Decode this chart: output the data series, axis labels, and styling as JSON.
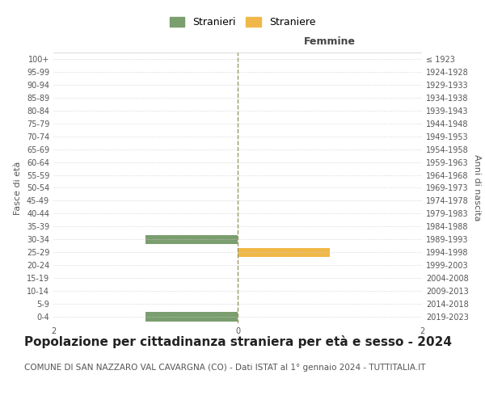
{
  "age_groups": [
    "100+",
    "95-99",
    "90-94",
    "85-89",
    "80-84",
    "75-79",
    "70-74",
    "65-69",
    "60-64",
    "55-59",
    "50-54",
    "45-49",
    "40-44",
    "35-39",
    "30-34",
    "25-29",
    "20-24",
    "15-19",
    "10-14",
    "5-9",
    "0-4"
  ],
  "birth_years": [
    "≤ 1923",
    "1924-1928",
    "1929-1933",
    "1934-1938",
    "1939-1943",
    "1944-1948",
    "1949-1953",
    "1954-1958",
    "1959-1963",
    "1964-1968",
    "1969-1973",
    "1974-1978",
    "1979-1983",
    "1984-1988",
    "1989-1993",
    "1994-1998",
    "1999-2003",
    "2004-2008",
    "2009-2013",
    "2014-2018",
    "2019-2023"
  ],
  "males": [
    0,
    0,
    0,
    0,
    0,
    0,
    0,
    0,
    0,
    0,
    0,
    0,
    0,
    0,
    -1,
    0,
    0,
    0,
    0,
    0,
    -1
  ],
  "females": [
    0,
    0,
    0,
    0,
    0,
    0,
    0,
    0,
    0,
    0,
    0,
    0,
    0,
    0,
    0,
    1,
    0,
    0,
    0,
    0,
    0
  ],
  "male_color": "#7a9e6e",
  "female_color": "#f0b848",
  "male_label": "Stranieri",
  "female_label": "Straniere",
  "xlim": [
    -2,
    2
  ],
  "xticks": [
    -2,
    0,
    2
  ],
  "xlabel_right": "Femmine",
  "ylabel_left": "Fasce di età",
  "ylabel_right": "Anni di nascita",
  "title": "Popolazione per cittadinanza straniera per età e sesso - 2024",
  "subtitle": "COMUNE DI SAN NAZZARO VAL CAVARGNA (CO) - Dati ISTAT al 1° gennaio 2024 - TUTTITALIA.IT",
  "bg_color": "#ffffff",
  "grid_color": "#cccccc",
  "center_line_color": "#999966",
  "title_fontsize": 11,
  "subtitle_fontsize": 7.5,
  "tick_fontsize": 7,
  "label_fontsize": 8,
  "legend_fontsize": 9
}
